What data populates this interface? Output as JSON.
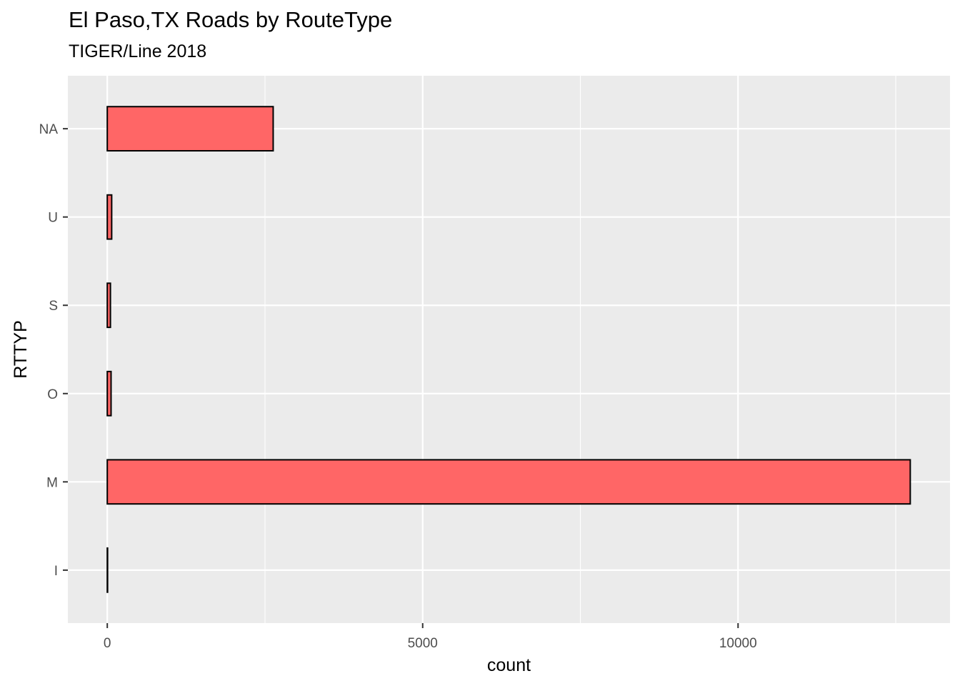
{
  "chart_data": {
    "type": "bar",
    "orientation": "horizontal",
    "title": "El Paso,TX Roads by RouteType",
    "subtitle": "TIGER/Line 2018",
    "xlabel": "count",
    "ylabel": "RTTYP",
    "categories": [
      "I",
      "M",
      "O",
      "S",
      "U",
      "NA"
    ],
    "values": [
      5,
      12730,
      60,
      50,
      70,
      2630
    ],
    "xlim": [
      -625,
      13360
    ],
    "x_ticks": [
      0,
      5000,
      10000
    ],
    "x_minor_ticks": [
      2500,
      7500,
      12500
    ],
    "grid": true,
    "legend": "none",
    "colors": {
      "bar_fill": "#ff6666",
      "bar_outline": "#000000",
      "panel_background": "#ebebeb",
      "grid": "#ffffff",
      "tick_label": "#4d4d4d"
    }
  }
}
